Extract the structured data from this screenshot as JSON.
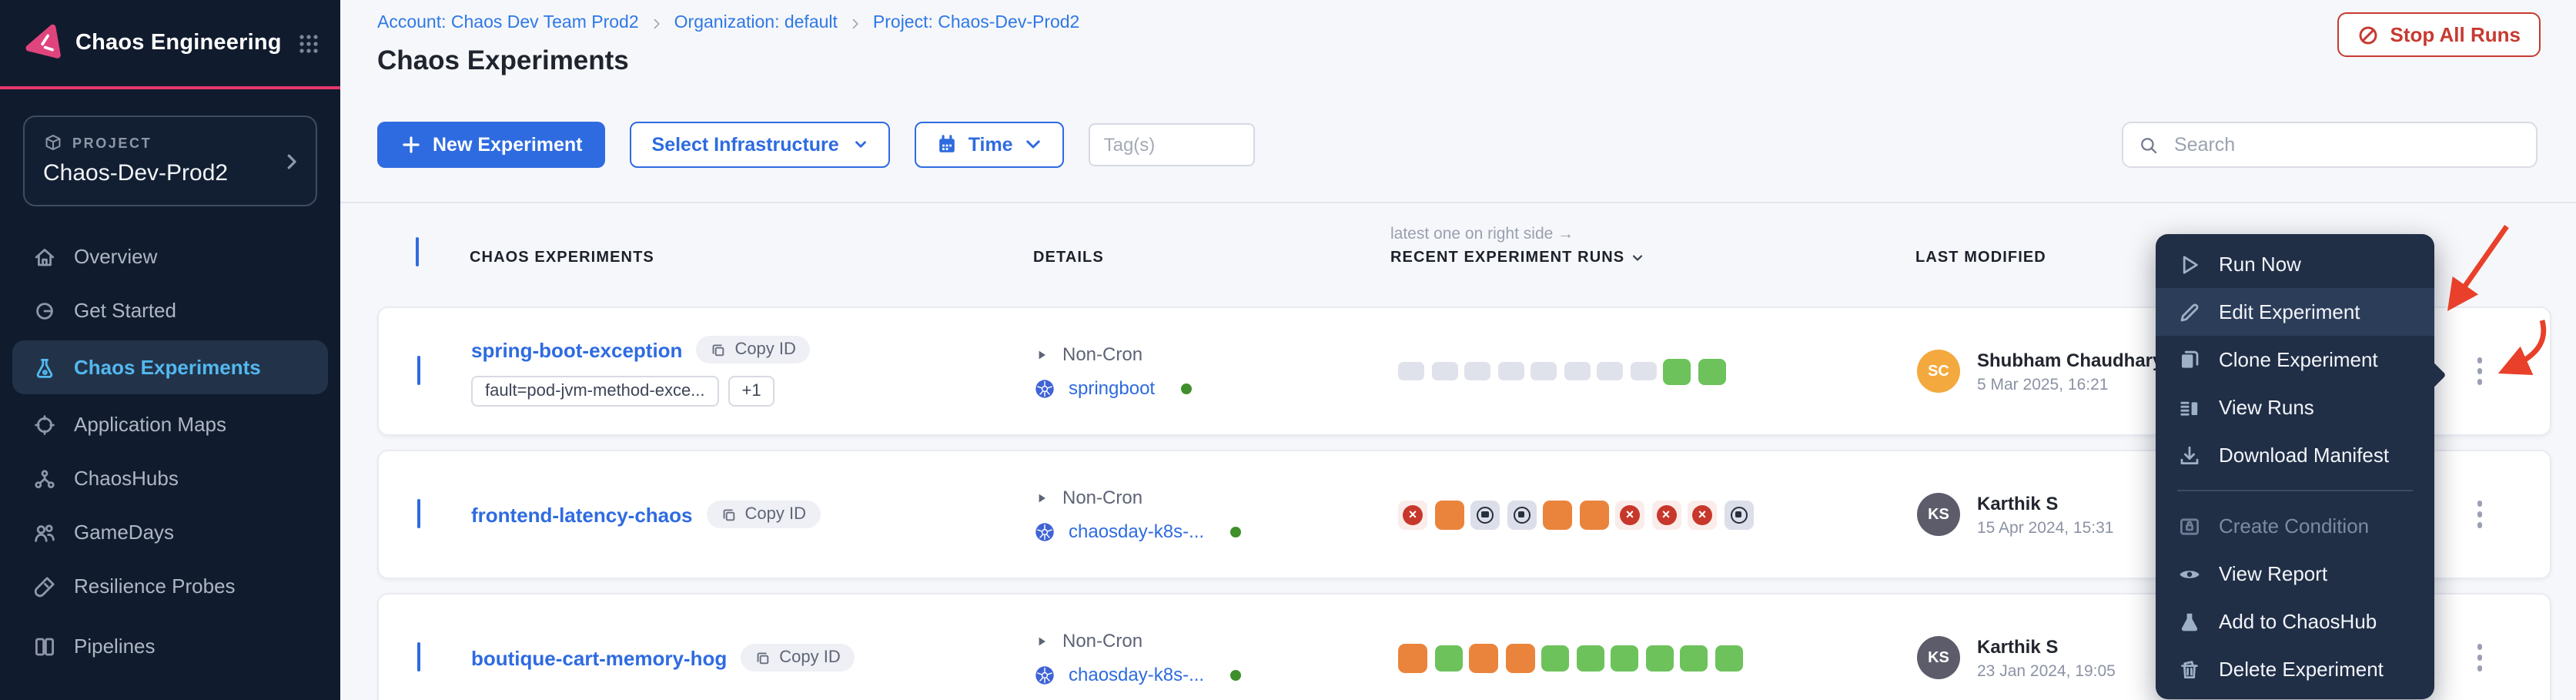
{
  "app": {
    "title": "Chaos Engineering"
  },
  "sidebar": {
    "project_label": "PROJECT",
    "project_name": "Chaos-Dev-Prod2",
    "items": [
      {
        "label": "Overview",
        "icon": "home-icon"
      },
      {
        "label": "Get Started",
        "icon": "get-started-icon"
      },
      {
        "label": "Chaos Experiments",
        "icon": "flask-icon",
        "active": true
      },
      {
        "label": "Application Maps",
        "icon": "target-icon"
      },
      {
        "label": "ChaosHubs",
        "icon": "network-icon"
      },
      {
        "label": "GameDays",
        "icon": "users-icon"
      },
      {
        "label": "Resilience Probes",
        "icon": "probe-icon"
      },
      {
        "label": "Pipelines",
        "icon": "pipelines-icon",
        "truncated": true
      }
    ]
  },
  "header": {
    "breadcrumb": [
      {
        "label": "Account: Chaos Dev Team Prod2"
      },
      {
        "label": "Organization: default"
      },
      {
        "label": "Project: Chaos-Dev-Prod2"
      }
    ],
    "page_title": "Chaos Experiments",
    "stop_all_runs_label": "Stop All Runs"
  },
  "toolbar": {
    "new_experiment_label": "New Experiment",
    "select_infrastructure_label": "Select Infrastructure",
    "time_label": "Time",
    "tags_placeholder": "Tag(s)",
    "search_placeholder": "Search"
  },
  "table": {
    "runs_note": "latest one on right side →",
    "columns": [
      "CHAOS EXPERIMENTS",
      "DETAILS",
      "RECENT EXPERIMENT RUNS",
      "LAST MODIFIED"
    ],
    "rows": [
      {
        "name": "spring-boot-exception",
        "copy_id_label": "Copy ID",
        "tags": [
          "fault=pod-jvm-method-exce...",
          "+1"
        ],
        "schedule": "Non-Cron",
        "infrastructure": "springboot",
        "infrastructure_status": "active",
        "runs": [
          "no-run",
          "no-run",
          "no-run",
          "no-run",
          "no-run",
          "no-run",
          "no-run",
          "no-run",
          "completed",
          "completed"
        ],
        "modified_by": "Shubham Chaudhary",
        "modified_initials": "SC",
        "avatar_color": "av-orange",
        "modified_date": "5 Mar 2025, 16:21"
      },
      {
        "name": "frontend-latency-chaos",
        "copy_id_label": "Copy ID",
        "tags": [],
        "schedule": "Non-Cron",
        "infrastructure": "chaosday-k8s-...",
        "infrastructure_status": "active",
        "runs": [
          "failed",
          "running",
          "stopped",
          "stopped",
          "running",
          "running",
          "failed",
          "failed",
          "failed",
          "stopped"
        ],
        "modified_by": "Karthik S",
        "modified_initials": "KS",
        "avatar_color": "av-gray",
        "modified_date": "15 Apr 2024, 15:31"
      },
      {
        "name": "boutique-cart-memory-hog",
        "copy_id_label": "Copy ID",
        "tags": [],
        "schedule": "Non-Cron",
        "infrastructure": "chaosday-k8s-...",
        "infrastructure_status": "active",
        "runs": [
          "running",
          "completed",
          "running",
          "running",
          "completed",
          "completed",
          "completed",
          "completed",
          "completed",
          "completed"
        ],
        "modified_by": "Karthik S",
        "modified_initials": "KS",
        "avatar_color": "av-gray",
        "modified_date": "23 Jan 2024, 19:05"
      }
    ]
  },
  "context_menu": {
    "items": [
      {
        "label": "Run Now",
        "icon": "play-outline-icon"
      },
      {
        "label": "Edit Experiment",
        "icon": "pencil-icon",
        "highlighted": true
      },
      {
        "label": "Clone Experiment",
        "icon": "clone-icon"
      },
      {
        "label": "View Runs",
        "icon": "view-runs-icon"
      },
      {
        "label": "Download Manifest",
        "icon": "download-icon"
      },
      {
        "label": "Create Condition",
        "icon": "condition-icon",
        "disabled": true,
        "divider_before": true
      },
      {
        "label": "View Report",
        "icon": "eye-icon"
      },
      {
        "label": "Add to ChaosHub",
        "icon": "flask-solid-icon"
      },
      {
        "label": "Delete Experiment",
        "icon": "trash-icon"
      }
    ]
  },
  "colors": {
    "primary_blue": "#2e6be0",
    "accent_pink": "#e5386f",
    "sidebar_bg": "#101b2d",
    "menu_bg": "#202e46",
    "active_link_blue": "#53b8ef",
    "success_green": "#6dc25c",
    "running_orange": "#ea843c",
    "failed_red": "#c7372b",
    "stopped_gray": "#dcdee9",
    "no_run_gray": "#e0e2eb",
    "stop_button_red": "#c73a30",
    "annotation_arrow_red": "#e8402a",
    "avatar_orange": "#f3a93d",
    "avatar_gray": "#5d5c6a",
    "infra_active_green": "#3f8f2a"
  }
}
